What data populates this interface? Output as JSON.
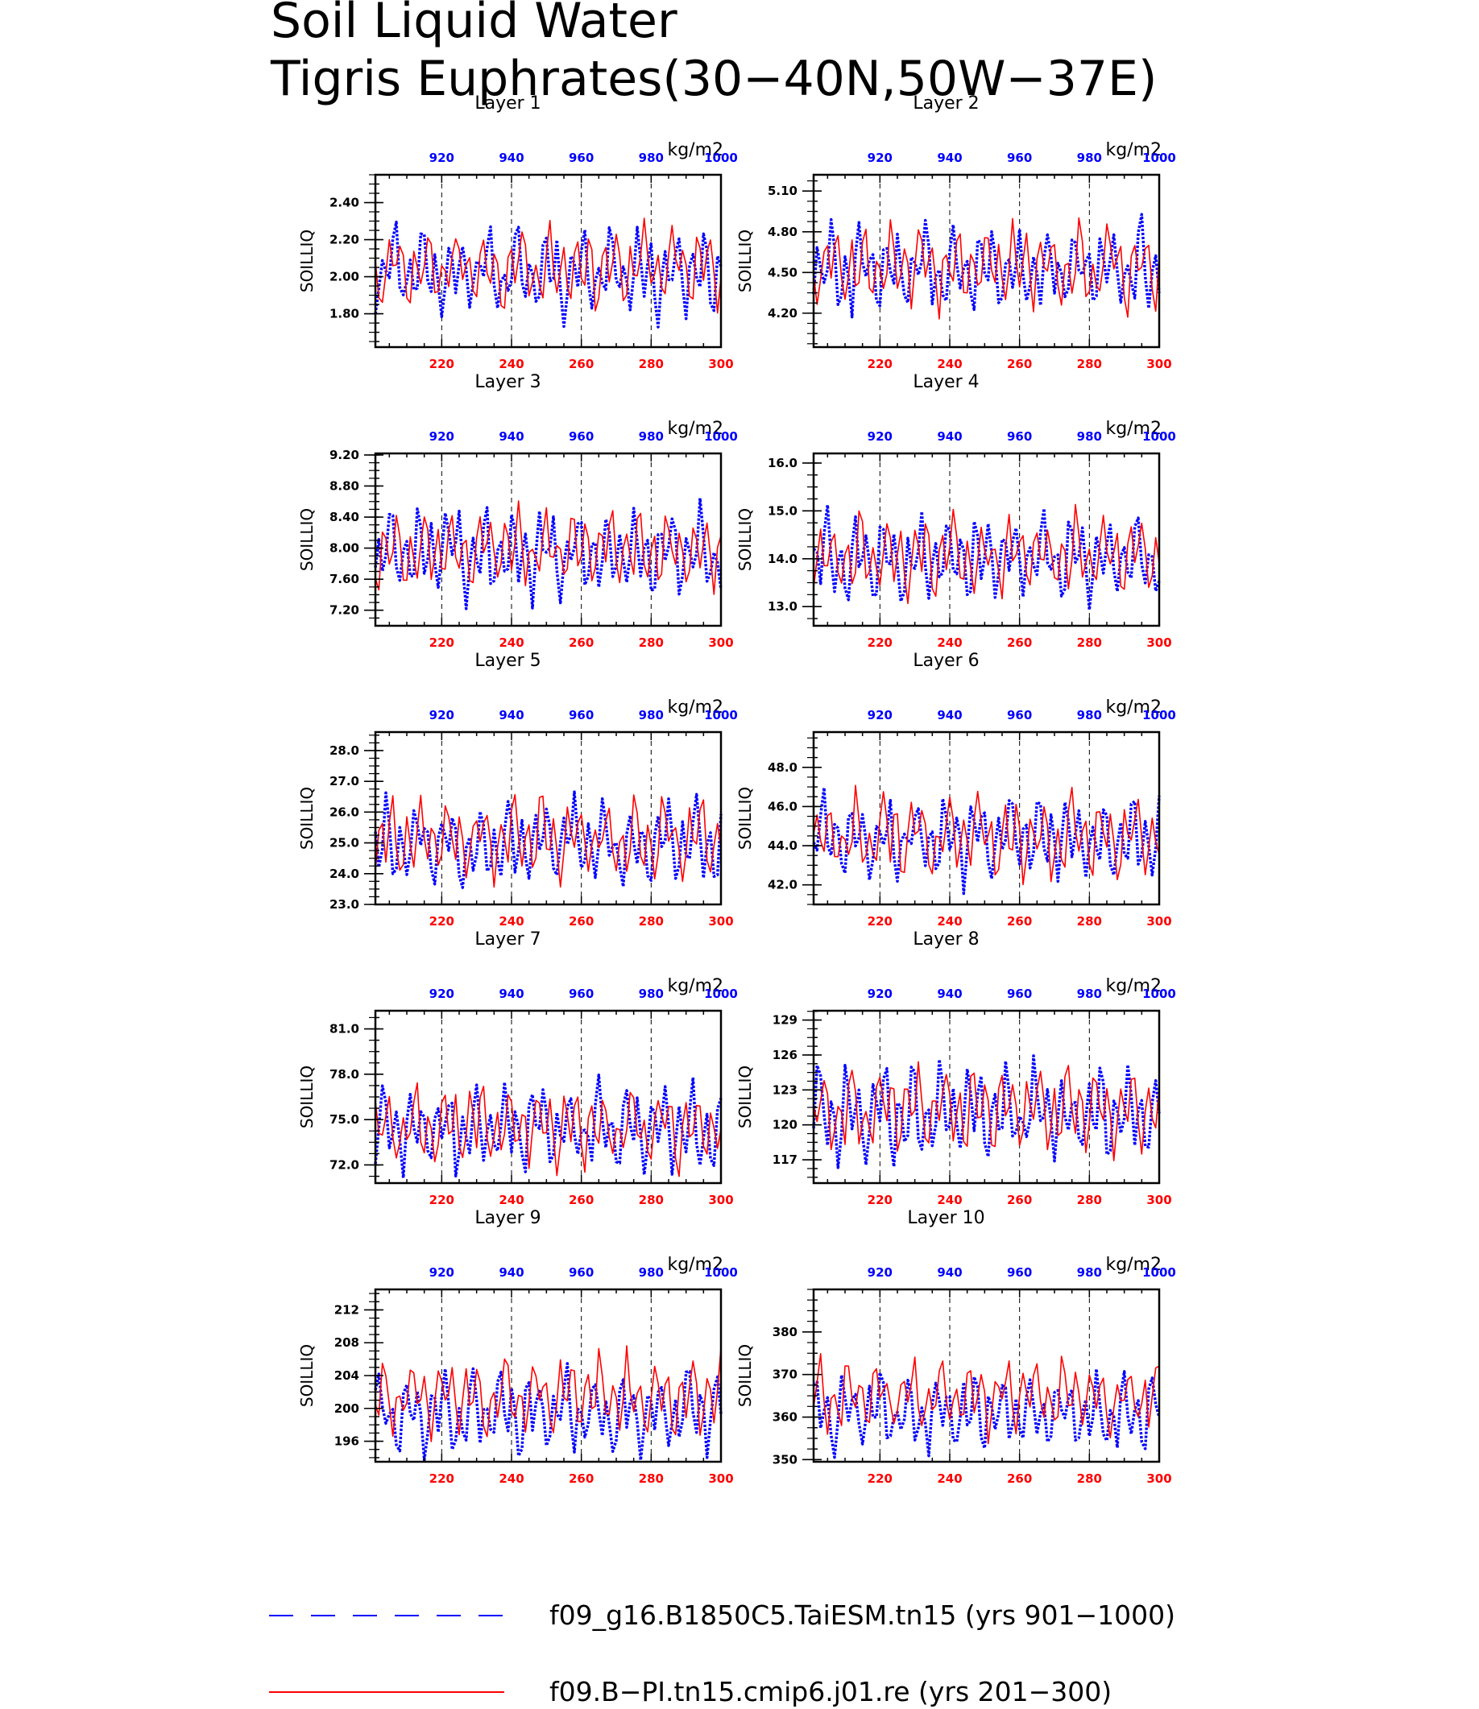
{
  "title_line1": "Soil Liquid Water",
  "title_line2": "Tigris Euphrates(30−40N,50W−37E)",
  "colors": {
    "red": "#ff0000",
    "blue": "#0000ff"
  },
  "legend": [
    {
      "label": "f09_g16.B1850C5.TaiESM.tn15 (yrs 901−1000)",
      "color": "#0000ff",
      "style": "dashed"
    },
    {
      "label": "f09.B−PI.tn15.cmip6.j01.re (yrs 201−300)",
      "color": "#ff0000",
      "style": "solid"
    }
  ],
  "chart_data": [
    {
      "type": "line",
      "title": "Layer 1",
      "ylabel": "SOILLIQ",
      "units": "kg/m2",
      "x_bottom": {
        "range": [
          201,
          300
        ],
        "ticks": [
          220,
          240,
          260,
          280,
          300
        ]
      },
      "x_top": {
        "range": [
          901,
          1000
        ],
        "ticks": [
          920,
          940,
          960,
          980,
          1000
        ]
      },
      "ylim": [
        1.62,
        2.55
      ],
      "yticks": [
        "1.80",
        "2.00",
        "2.20",
        "2.40"
      ],
      "series": [
        {
          "years": "901-1000",
          "color": "blue",
          "mean": 2.02,
          "amp": 0.17,
          "seed": 11
        },
        {
          "years": "201-300",
          "color": "red",
          "mean": 2.05,
          "amp": 0.15,
          "seed": 27
        }
      ]
    },
    {
      "type": "line",
      "title": "Layer 2",
      "ylabel": "SOILLIQ",
      "units": "kg/m2",
      "x_bottom": {
        "range": [
          201,
          300
        ],
        "ticks": [
          220,
          240,
          260,
          280,
          300
        ]
      },
      "x_top": {
        "range": [
          901,
          1000
        ],
        "ticks": [
          920,
          940,
          960,
          980,
          1000
        ]
      },
      "ylim": [
        3.95,
        5.22
      ],
      "yticks": [
        "4.20",
        "4.50",
        "4.80",
        "5.10"
      ],
      "series": [
        {
          "years": "901-1000",
          "color": "blue",
          "mean": 4.52,
          "amp": 0.24,
          "seed": 12
        },
        {
          "years": "201-300",
          "color": "red",
          "mean": 4.55,
          "amp": 0.22,
          "seed": 28
        }
      ]
    },
    {
      "type": "line",
      "title": "Layer 3",
      "ylabel": "SOILLIQ",
      "units": "kg/m2",
      "x_bottom": {
        "range": [
          201,
          300
        ],
        "ticks": [
          220,
          240,
          260,
          280,
          300
        ]
      },
      "x_top": {
        "range": [
          901,
          1000
        ],
        "ticks": [
          920,
          940,
          960,
          980,
          1000
        ]
      },
      "ylim": [
        7.0,
        9.22
      ],
      "yticks": [
        "7.20",
        "7.60",
        "8.00",
        "8.40",
        "8.80",
        "9.20"
      ],
      "series": [
        {
          "years": "901-1000",
          "color": "blue",
          "mean": 7.95,
          "amp": 0.42,
          "seed": 13
        },
        {
          "years": "201-300",
          "color": "red",
          "mean": 8.0,
          "amp": 0.38,
          "seed": 29
        }
      ]
    },
    {
      "type": "line",
      "title": "Layer 4",
      "ylabel": "SOILLIQ",
      "units": "kg/m2",
      "x_bottom": {
        "range": [
          201,
          300
        ],
        "ticks": [
          220,
          240,
          260,
          280,
          300
        ]
      },
      "x_top": {
        "range": [
          901,
          1000
        ],
        "ticks": [
          920,
          940,
          960,
          980,
          1000
        ]
      },
      "ylim": [
        12.6,
        16.2
      ],
      "yticks": [
        "13.0",
        "14.0",
        "15.0",
        "16.0"
      ],
      "series": [
        {
          "years": "901-1000",
          "color": "blue",
          "mean": 14.0,
          "amp": 0.65,
          "seed": 14
        },
        {
          "years": "201-300",
          "color": "red",
          "mean": 14.05,
          "amp": 0.6,
          "seed": 30
        }
      ]
    },
    {
      "type": "line",
      "title": "Layer 5",
      "ylabel": "SOILLIQ",
      "units": "kg/m2",
      "x_bottom": {
        "range": [
          201,
          300
        ],
        "ticks": [
          220,
          240,
          260,
          280,
          300
        ]
      },
      "x_top": {
        "range": [
          901,
          1000
        ],
        "ticks": [
          920,
          940,
          960,
          980,
          1000
        ]
      },
      "ylim": [
        23.0,
        28.6
      ],
      "yticks": [
        "23.0",
        "24.0",
        "25.0",
        "26.0",
        "27.0",
        "28.0"
      ],
      "series": [
        {
          "years": "901-1000",
          "color": "blue",
          "mean": 25.0,
          "amp": 1.0,
          "seed": 15
        },
        {
          "years": "201-300",
          "color": "red",
          "mean": 25.1,
          "amp": 0.95,
          "seed": 31
        }
      ]
    },
    {
      "type": "line",
      "title": "Layer 6",
      "ylabel": "SOILLIQ",
      "units": "kg/m2",
      "x_bottom": {
        "range": [
          201,
          300
        ],
        "ticks": [
          220,
          240,
          260,
          280,
          300
        ]
      },
      "x_top": {
        "range": [
          901,
          1000
        ],
        "ticks": [
          920,
          940,
          960,
          980,
          1000
        ]
      },
      "ylim": [
        41.0,
        49.8
      ],
      "yticks": [
        "42.0",
        "44.0",
        "46.0",
        "48.0"
      ],
      "series": [
        {
          "years": "901-1000",
          "color": "blue",
          "mean": 44.3,
          "amp": 1.6,
          "seed": 16
        },
        {
          "years": "201-300",
          "color": "red",
          "mean": 44.4,
          "amp": 1.5,
          "seed": 32
        }
      ]
    },
    {
      "type": "line",
      "title": "Layer 7",
      "ylabel": "SOILLIQ",
      "units": "kg/m2",
      "x_bottom": {
        "range": [
          201,
          300
        ],
        "ticks": [
          220,
          240,
          260,
          280,
          300
        ]
      },
      "x_top": {
        "range": [
          901,
          1000
        ],
        "ticks": [
          920,
          940,
          960,
          980,
          1000
        ]
      },
      "ylim": [
        70.8,
        82.2
      ],
      "yticks": [
        "72.0",
        "75.0",
        "78.0",
        "81.0"
      ],
      "series": [
        {
          "years": "901-1000",
          "color": "blue",
          "mean": 74.3,
          "amp": 2.1,
          "seed": 17
        },
        {
          "years": "201-300",
          "color": "red",
          "mean": 74.5,
          "amp": 1.9,
          "seed": 33
        }
      ]
    },
    {
      "type": "line",
      "title": "Layer 8",
      "ylabel": "SOILLIQ",
      "units": "kg/m2",
      "x_bottom": {
        "range": [
          201,
          300
        ],
        "ticks": [
          220,
          240,
          260,
          280,
          300
        ]
      },
      "x_top": {
        "range": [
          901,
          1000
        ],
        "ticks": [
          920,
          940,
          960,
          980,
          1000
        ]
      },
      "ylim": [
        115.0,
        129.8
      ],
      "yticks": [
        "117",
        "120",
        "123",
        "126",
        "129"
      ],
      "series": [
        {
          "years": "901-1000",
          "color": "blue",
          "mean": 121.0,
          "amp": 2.9,
          "seed": 18
        },
        {
          "years": "201-300",
          "color": "red",
          "mean": 121.3,
          "amp": 2.6,
          "seed": 34
        }
      ]
    },
    {
      "type": "line",
      "title": "Layer 9",
      "ylabel": "SOILLIQ",
      "units": "kg/m2",
      "x_bottom": {
        "range": [
          201,
          300
        ],
        "ticks": [
          220,
          240,
          260,
          280,
          300
        ]
      },
      "x_top": {
        "range": [
          901,
          1000
        ],
        "ticks": [
          920,
          940,
          960,
          980,
          1000
        ]
      },
      "ylim": [
        193.5,
        214.5
      ],
      "yticks": [
        "196",
        "200",
        "204",
        "208",
        "212"
      ],
      "series": [
        {
          "years": "901-1000",
          "color": "blue",
          "mean": 199.5,
          "amp": 3.6,
          "seed": 19
        },
        {
          "years": "201-300",
          "color": "red",
          "mean": 201.5,
          "amp": 3.4,
          "seed": 35
        }
      ]
    },
    {
      "type": "line",
      "title": "Layer 10",
      "ylabel": "SOILLIQ",
      "units": "kg/m2",
      "x_bottom": {
        "range": [
          201,
          300
        ],
        "ticks": [
          220,
          240,
          260,
          280,
          300
        ]
      },
      "x_top": {
        "range": [
          901,
          1000
        ],
        "ticks": [
          920,
          940,
          960,
          980,
          1000
        ]
      },
      "ylim": [
        349.5,
        390.0
      ],
      "yticks": [
        "350",
        "360",
        "370",
        "380"
      ],
      "series": [
        {
          "years": "901-1000",
          "color": "blue",
          "mean": 361.0,
          "amp": 6.5,
          "seed": 20
        },
        {
          "years": "201-300",
          "color": "red",
          "mean": 365.0,
          "amp": 6.5,
          "seed": 36
        }
      ]
    }
  ]
}
